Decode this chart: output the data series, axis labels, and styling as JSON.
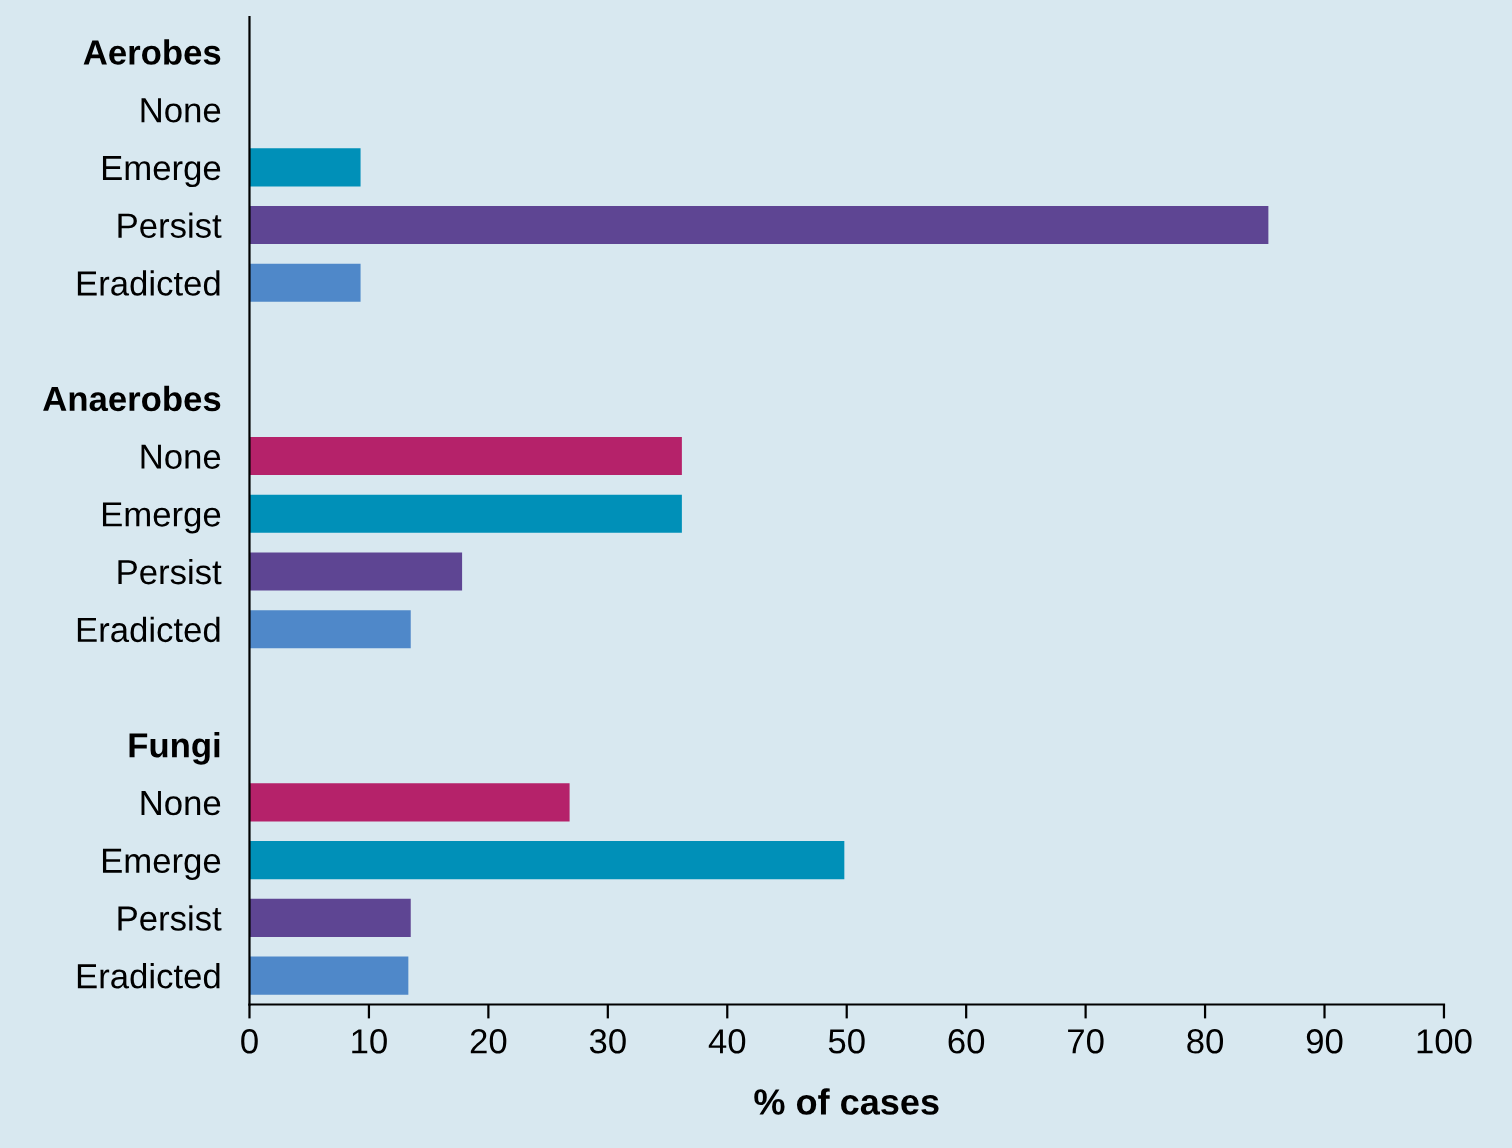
{
  "chart_data": {
    "type": "bar",
    "orientation": "horizontal",
    "xlabel": "% of cases",
    "categories": [
      "Aerobes",
      "None",
      "Emerge",
      "Persist",
      "Eradicted",
      null,
      "Anaerobes",
      "None",
      "Emerge",
      "Persist",
      "Eradicted",
      null,
      "Fungi",
      "None",
      "Emerge",
      "Persist",
      "Eradicted"
    ],
    "values": [
      null,
      0,
      9.3,
      85.3,
      9.3,
      null,
      null,
      36.2,
      36.2,
      17.8,
      13.5,
      null,
      null,
      26.8,
      49.8,
      13.5,
      13.3
    ],
    "colors": [
      "#b5226a",
      "#b5226a",
      "#0090b8",
      "#5e4593",
      "#4f88c9",
      "#b5226a",
      "#b5226a",
      "#b5226a",
      "#0090b8",
      "#5e4593",
      "#4f88c9",
      "#b5226a",
      "#b5226a",
      "#b5226a",
      "#0090b8",
      "#5e4593",
      "#4f88c9"
    ],
    "xlim": [
      0,
      100
    ],
    "xticks": [
      0,
      10,
      20,
      30,
      40,
      50,
      60,
      70,
      80,
      90,
      100
    ],
    "grid": false,
    "legend": false
  }
}
